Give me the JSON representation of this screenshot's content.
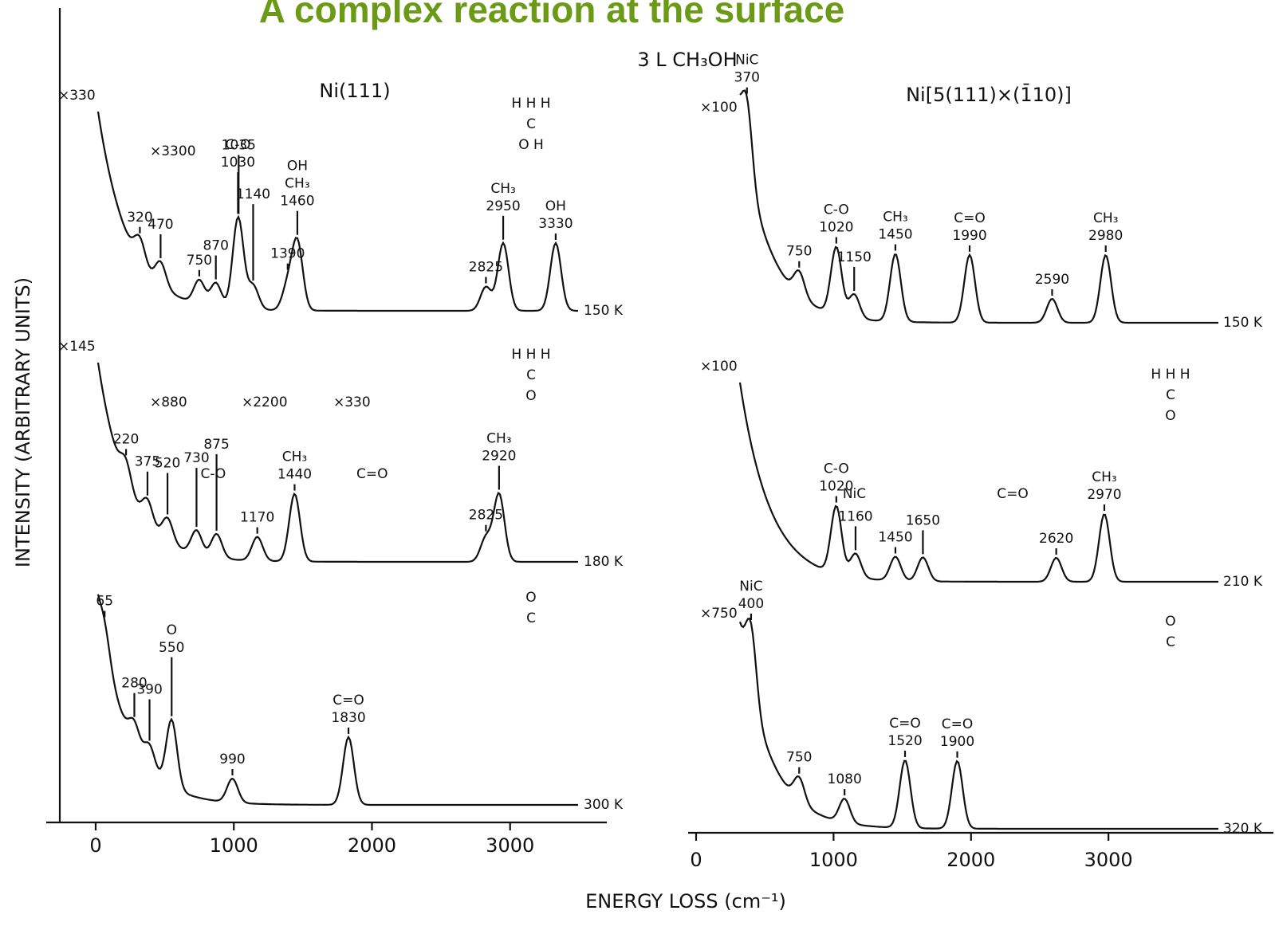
{
  "title": "A complex reaction at the surface",
  "header": "3 L CH₃OH",
  "y_axis_label": "INTENSITY (ARBITRARY UNITS)",
  "x_axis_label": "ENERGY LOSS (cm⁻¹)",
  "panels": [
    {
      "label": "Ni(111)",
      "xlim": [
        -300,
        3700
      ],
      "xticks": [
        0,
        1000,
        2000,
        3000
      ],
      "spectra": [
        {
          "temperature": "150 K",
          "scales": [
            "×330",
            "×3300"
          ],
          "structure": [
            "H H H",
            "C",
            "O H"
          ],
          "peaks": [
            {
              "value": 320
            },
            {
              "value": 470
            },
            {
              "value": 750
            },
            {
              "value": 870
            },
            {
              "value": 1030,
              "label": [
                "C-O"
              ]
            },
            {
              "value": 1035
            },
            {
              "value": 1140
            },
            {
              "value": 1390
            },
            {
              "value": 1460,
              "label": [
                "OH",
                "CH₃"
              ]
            },
            {
              "value": 2825
            },
            {
              "value": 2950,
              "label": [
                "CH₃"
              ]
            },
            {
              "value": 3330,
              "label": [
                "OH"
              ]
            }
          ]
        },
        {
          "temperature": "180 K",
          "scales": [
            "×145",
            "×880",
            "×2200",
            "×330"
          ],
          "band_labels": [
            "C-O",
            "C=O"
          ],
          "structure": [
            "H H H",
            "C",
            "O"
          ],
          "peaks": [
            {
              "value": 220
            },
            {
              "value": 375
            },
            {
              "value": 520
            },
            {
              "value": 730
            },
            {
              "value": 875
            },
            {
              "value": 1170
            },
            {
              "value": 1440,
              "label": [
                "CH₃"
              ]
            },
            {
              "value": 2825
            },
            {
              "value": 2920,
              "label": [
                "CH₃"
              ]
            }
          ]
        },
        {
          "temperature": "300 K",
          "structure": [
            "O",
            "C"
          ],
          "peaks": [
            {
              "value": 65
            },
            {
              "value": 280
            },
            {
              "value": 390
            },
            {
              "value": 550,
              "label": [
                "O"
              ]
            },
            {
              "value": 990
            },
            {
              "value": 1830,
              "label": [
                "C=O"
              ]
            }
          ]
        }
      ]
    },
    {
      "label": "Ni[5(111)×(1̄10)]",
      "xlim": [
        0,
        4200
      ],
      "xticks": [
        0,
        1000,
        2000,
        3000
      ],
      "spectra": [
        {
          "temperature": "150 K",
          "scales": [
            "×100"
          ],
          "peaks": [
            {
              "value": 370,
              "label": [
                "NiC"
              ]
            },
            {
              "value": 750
            },
            {
              "value": 1020,
              "label": [
                "C-O"
              ]
            },
            {
              "value": 1150
            },
            {
              "value": 1450,
              "label": [
                "CH₃"
              ]
            },
            {
              "value": 1990,
              "label": [
                "C=O"
              ]
            },
            {
              "value": 2590
            },
            {
              "value": 2980,
              "label": [
                "CH₃"
              ]
            }
          ]
        },
        {
          "temperature": "210 K",
          "scales": [
            "×100"
          ],
          "band_labels": [
            "NiC",
            "C=O"
          ],
          "structure": [
            "H H H",
            "C",
            "O"
          ],
          "peaks": [
            {
              "value": 1020,
              "label": [
                "C-O"
              ]
            },
            {
              "value": 1160
            },
            {
              "value": 1450
            },
            {
              "value": 1650
            },
            {
              "value": 2620
            },
            {
              "value": 2970,
              "label": [
                "CH₃"
              ]
            }
          ]
        },
        {
          "temperature": "320 K",
          "scales": [
            "×750"
          ],
          "structure": [
            "O",
            "C"
          ],
          "peaks": [
            {
              "value": 400,
              "label": [
                "NiC"
              ]
            },
            {
              "value": 750
            },
            {
              "value": 1080
            },
            {
              "value": 1520,
              "label": [
                "C=O"
              ]
            },
            {
              "value": 1900,
              "label": [
                "C=O"
              ]
            }
          ]
        }
      ]
    }
  ]
}
